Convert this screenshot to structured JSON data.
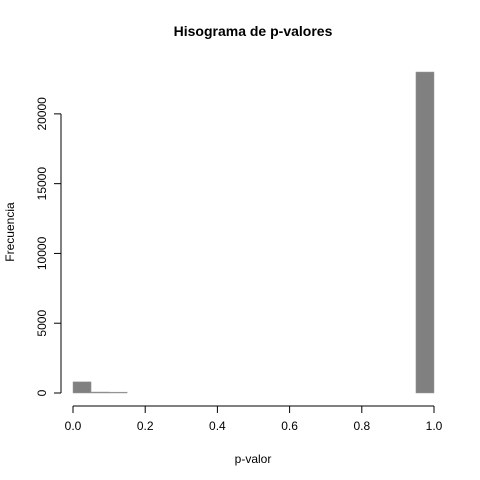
{
  "chart_data": {
    "type": "histogram",
    "title": "Hisograma de p-valores",
    "xlabel": "p-valor",
    "ylabel": "Frecuencia",
    "bins": [
      0,
      0.05,
      0.1,
      0.15,
      0.2,
      0.25,
      0.3,
      0.35,
      0.4,
      0.45,
      0.5,
      0.55,
      0.6,
      0.65,
      0.7,
      0.75,
      0.8,
      0.85,
      0.9,
      0.95,
      1
    ],
    "values": [
      800,
      70,
      60,
      0,
      0,
      0,
      0,
      0,
      0,
      0,
      0,
      0,
      0,
      0,
      0,
      0,
      0,
      0,
      0,
      23000
    ],
    "color": "#808080",
    "xlim": [
      0,
      1
    ],
    "xticks": [
      {
        "value": 0,
        "label": "0.0"
      },
      0.2,
      0.4,
      0.6,
      0.8,
      {
        "value": 1,
        "label": "1.0"
      }
    ],
    "ylim": [
      0,
      23000
    ],
    "yticks": [
      0,
      5000,
      10000,
      15000,
      20000
    ]
  }
}
